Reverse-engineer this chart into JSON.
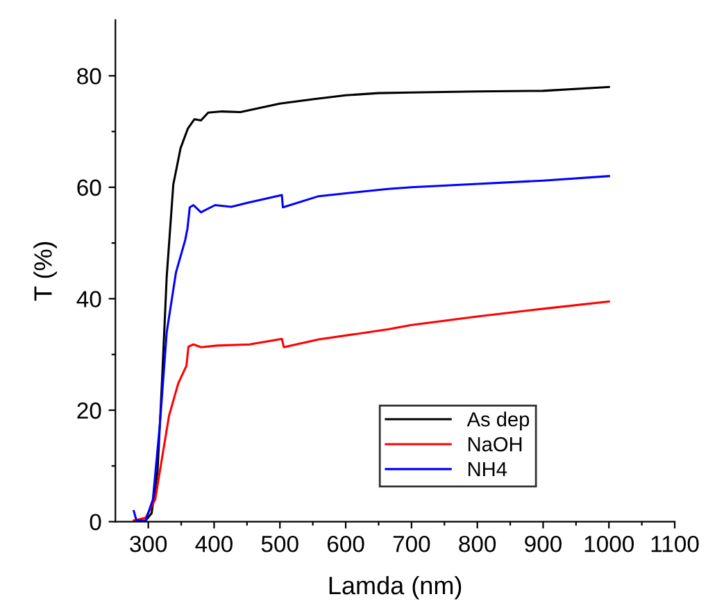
{
  "chart_data": {
    "type": "line",
    "xlabel": "Lamda (nm)",
    "ylabel": "T (%)",
    "xlim": [
      250,
      1100
    ],
    "ylim": [
      0,
      90
    ],
    "xticks": [
      300,
      {
        "value": 350,
        "label": null
      },
      400,
      {
        "value": 450,
        "label": null
      },
      500,
      {
        "value": 550,
        "label": null
      },
      600,
      {
        "value": 650,
        "label": null
      },
      700,
      {
        "value": 750,
        "label": null
      },
      800,
      {
        "value": 850,
        "label": null
      },
      900,
      {
        "value": 950,
        "label": null
      },
      1000,
      {
        "value": 1050,
        "label": null
      },
      1100
    ],
    "yticks": [
      0,
      {
        "value": 10,
        "label": null
      },
      20,
      {
        "value": 30,
        "label": null
      },
      40,
      {
        "value": 50,
        "label": null
      },
      60,
      {
        "value": 70,
        "label": null
      },
      80
    ],
    "legend": "bottom right",
    "grid": false,
    "marker": "none",
    "line_style": "solid",
    "series": [
      {
        "name": "As dep",
        "color": "#000000",
        "x": [
          296,
          305,
          314,
          321,
          328,
          338,
          349,
          360,
          370,
          380,
          391,
          412,
          440,
          500,
          550,
          600,
          650,
          700,
          800,
          900,
          1000
        ],
        "values": [
          0.2,
          1.5,
          9,
          25.6,
          44,
          60.5,
          67,
          70.5,
          72.2,
          72,
          73.4,
          73.6,
          73.5,
          75,
          75.8,
          76.5,
          76.9,
          77,
          77.2,
          77.3,
          78
        ]
      },
      {
        "name": "NaOH",
        "color": "#ff0000",
        "x": [
          278,
          296,
          310.5,
          321,
          331.5,
          345.5,
          358,
          361,
          368.6,
          380,
          405,
          454,
          503,
          506,
          559,
          664,
          700,
          800,
          900,
          1000
        ],
        "values": [
          0.2,
          0.7,
          4,
          11.5,
          19,
          24.8,
          28,
          31.4,
          31.8,
          31.3,
          31.6,
          31.8,
          32.8,
          31.3,
          32.7,
          34.5,
          35.3,
          36.8,
          38.2,
          39.5
        ]
      },
      {
        "name": "NH4",
        "color": "#0000ff",
        "x": [
          278,
          282,
          296,
          307,
          317.5,
          328,
          342,
          356,
          359.5,
          363,
          368.6,
          380,
          401.5,
          426,
          450.5,
          503,
          504.5,
          559,
          664,
          700,
          800,
          900,
          1000
        ],
        "values": [
          1.9,
          0.2,
          0.2,
          4,
          17.3,
          34,
          44.7,
          50.5,
          52.6,
          56.4,
          56.8,
          55.5,
          56.8,
          56.5,
          57.2,
          58.6,
          56.4,
          58.4,
          59.7,
          60,
          60.6,
          61.2,
          62
        ]
      }
    ]
  }
}
